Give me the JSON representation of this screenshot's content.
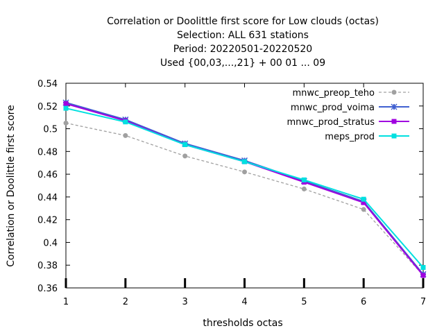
{
  "chart_data": {
    "type": "line",
    "title_lines": [
      "Correlation or Doolittle first score  for Low clouds (octas)",
      "Selection: ALL    631 stations",
      "Period: 20220501-20220520",
      "Used {00,03,...,21} + 00 01 ... 09"
    ],
    "xlabel": "thresholds octas",
    "ylabel": "Correlation or Doolittle first score",
    "x": [
      1,
      2,
      3,
      4,
      5,
      6,
      7
    ],
    "xlim": [
      1,
      7
    ],
    "ylim": [
      0.36,
      0.54
    ],
    "x_ticks": [
      "1",
      "2",
      "3",
      "4",
      "5",
      "6",
      "7"
    ],
    "y_ticks": [
      "0.36",
      "0.38",
      "0.4",
      "0.42",
      "0.44",
      "0.46",
      "0.48",
      "0.5",
      "0.52",
      "0.54"
    ],
    "grid": false,
    "legend_position": "top-right",
    "series": [
      {
        "name": "mnwc_preop_teho",
        "values": [
          0.505,
          0.494,
          0.476,
          0.462,
          0.447,
          0.429,
          0.371
        ],
        "color": "#a0a0a0",
        "dashed": true,
        "marker": "circle"
      },
      {
        "name": "mnwc_prod_voima",
        "values": [
          0.523,
          0.508,
          0.487,
          0.472,
          0.454,
          0.436,
          0.372
        ],
        "color": "#4060d0",
        "dashed": false,
        "marker": "star"
      },
      {
        "name": "mnwc_prod_stratus",
        "values": [
          0.522,
          0.507,
          0.486,
          0.471,
          0.453,
          0.435,
          0.371
        ],
        "color": "#a000e0",
        "dashed": false,
        "marker": "square"
      },
      {
        "name": "meps_prod",
        "values": [
          0.518,
          0.506,
          0.486,
          0.471,
          0.455,
          0.438,
          0.378
        ],
        "color": "#00e0e0",
        "dashed": false,
        "marker": "square"
      }
    ]
  }
}
